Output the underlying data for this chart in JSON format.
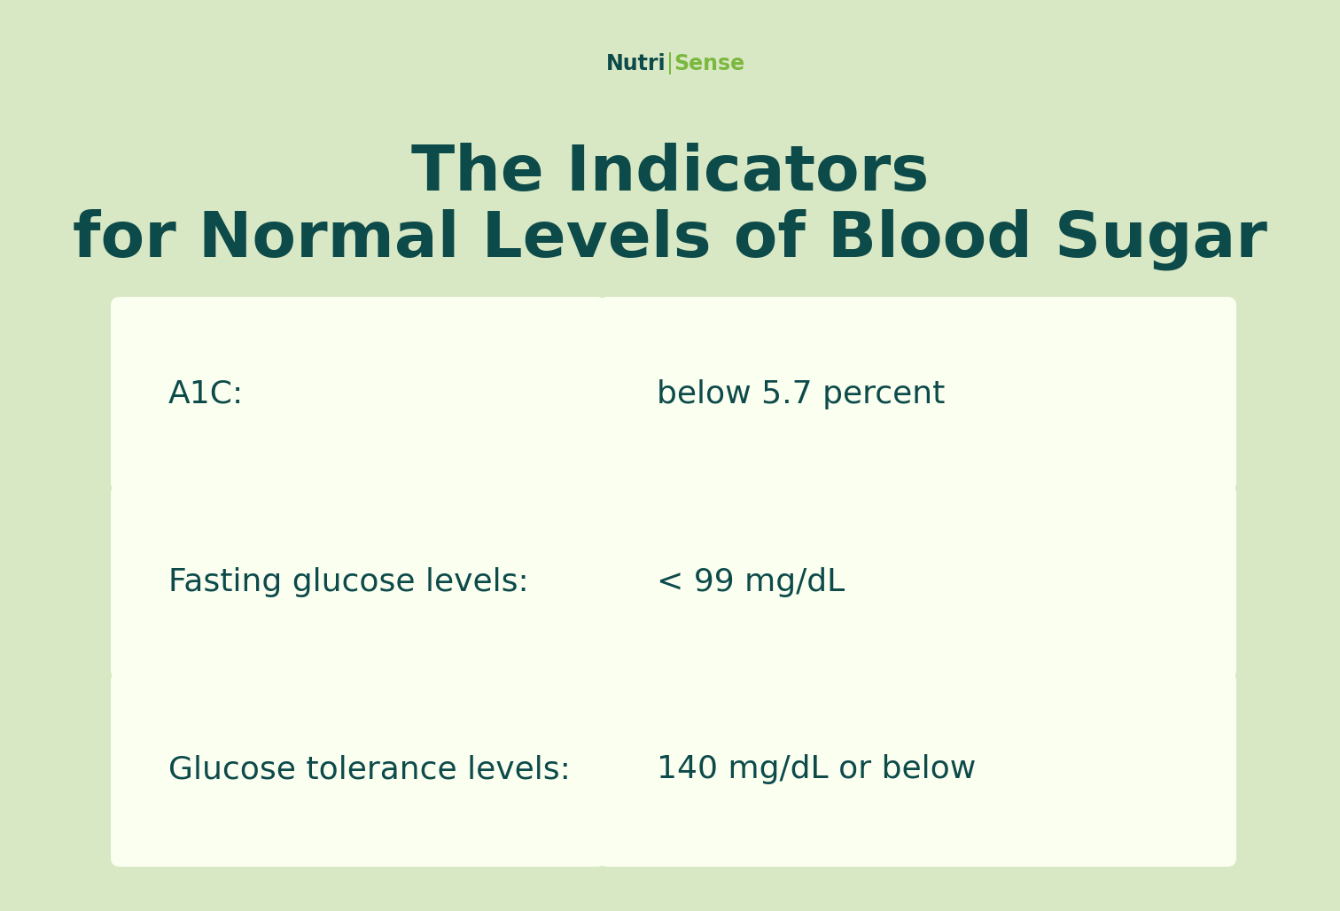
{
  "bg_color": "#d9e8c4",
  "card_bg_color": "#fafff0",
  "text_dark": "#0d4a4a",
  "text_green": "#7ab840",
  "title_line1": "The Indicators",
  "title_line2": "for Normal Levels of Blood Sugar",
  "brand_nutri": "Nutri",
  "brand_sense": "Sense",
  "brand_divider": "|",
  "rows": [
    {
      "label": "A1C:",
      "value": "below 5.7 percent"
    },
    {
      "label": "Fasting glucose levels:",
      "value": "< 99 mg/dL"
    },
    {
      "label": "Glucose tolerance levels:",
      "value": "140 mg/dL or below"
    }
  ],
  "title_fontsize": 52,
  "label_fontsize": 26,
  "brand_fontsize": 17,
  "figsize": [
    15.12,
    10.28
  ],
  "dpi": 100
}
